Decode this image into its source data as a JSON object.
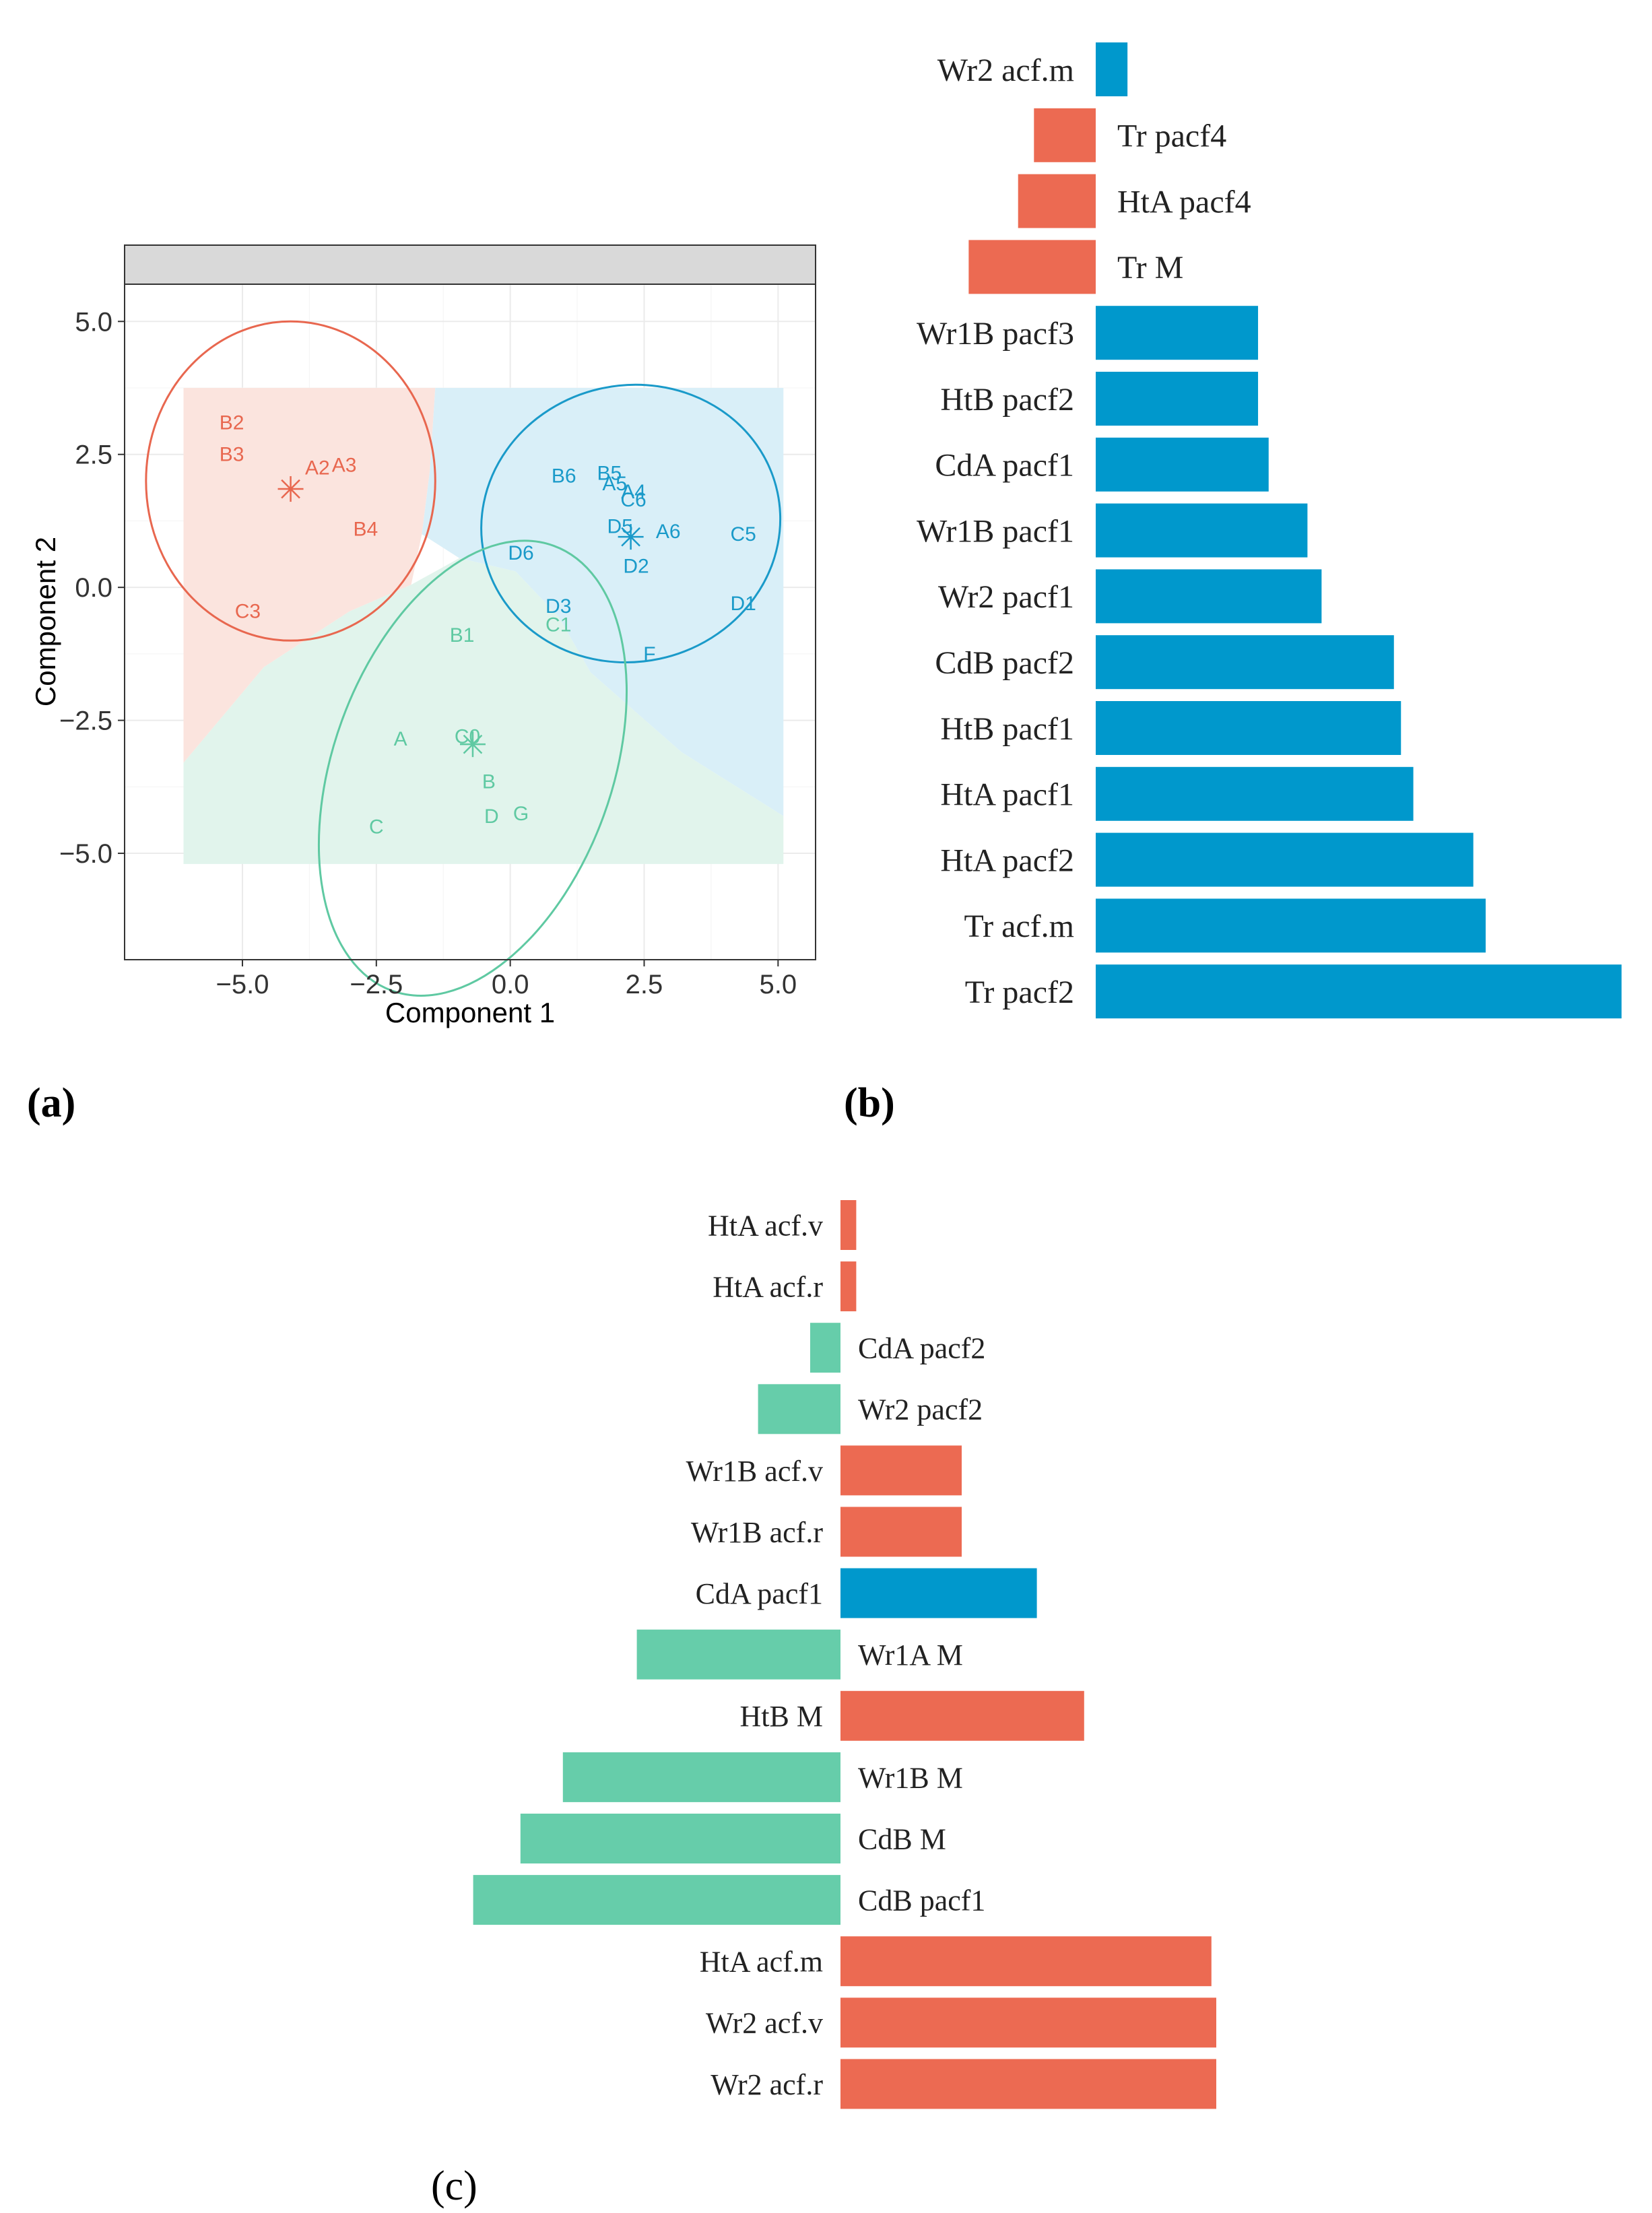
{
  "colors": {
    "red": "#e8674f",
    "blue": "#1a9ac9",
    "green": "#5fc9a2",
    "red_fill": "#fbe4de",
    "blue_fill": "#d9eff8",
    "green_fill": "#e1f4ec",
    "bar_red": "#ec6a52",
    "bar_blue": "#0098cc",
    "bar_green": "#66cdaa",
    "panel_border": "#333333",
    "strip_fill": "#d9d9d9",
    "grid": "#ebebeb"
  },
  "panel_labels": {
    "a": "(a)",
    "b": "(b)",
    "c": "(c)"
  },
  "chart_data": [
    {
      "id": "a",
      "type": "scatter",
      "title": "",
      "xlabel": "Component 1",
      "ylabel": "Component 2",
      "xlim": [
        -7.2,
        5.7
      ],
      "ylim": [
        -7.0,
        5.7
      ],
      "xticks": [
        -5.0,
        -2.5,
        0.0,
        2.5,
        5.0
      ],
      "xtick_labels": [
        "−5.0",
        "−2.5",
        "0.0",
        "2.5",
        "5.0"
      ],
      "yticks": [
        5.0,
        2.5,
        0.0,
        -2.5,
        -5.0
      ],
      "ytick_labels": [
        "5.0",
        "2.5",
        "0.0",
        "−2.5",
        "−5.0"
      ],
      "grid": true,
      "clusters": [
        {
          "name": "cluster-red",
          "color": "red",
          "centroid": [
            -4.1,
            1.85
          ],
          "points": [
            {
              "label": "B2",
              "x": -5.2,
              "y": 3.1
            },
            {
              "label": "B3",
              "x": -5.2,
              "y": 2.5
            },
            {
              "label": "A2",
              "x": -3.6,
              "y": 2.25
            },
            {
              "label": "A3",
              "x": -3.1,
              "y": 2.3
            },
            {
              "label": "B4",
              "x": -2.7,
              "y": 1.1
            },
            {
              "label": "C3",
              "x": -4.9,
              "y": -0.45
            }
          ]
        },
        {
          "name": "cluster-blue",
          "color": "blue",
          "centroid": [
            2.25,
            0.95
          ],
          "points": [
            {
              "label": "B6",
              "x": 1.0,
              "y": 2.1
            },
            {
              "label": "B5",
              "x": 1.85,
              "y": 2.15
            },
            {
              "label": "A5",
              "x": 1.95,
              "y": 1.95
            },
            {
              "label": "A4",
              "x": 2.3,
              "y": 1.8
            },
            {
              "label": "C6",
              "x": 2.3,
              "y": 1.65
            },
            {
              "label": "D5",
              "x": 2.05,
              "y": 1.15
            },
            {
              "label": "A6",
              "x": 2.95,
              "y": 1.05
            },
            {
              "label": "C5",
              "x": 4.35,
              "y": 1.0
            },
            {
              "label": "D6",
              "x": 0.2,
              "y": 0.65
            },
            {
              "label": "D2",
              "x": 2.35,
              "y": 0.4
            },
            {
              "label": "D3",
              "x": 0.9,
              "y": -0.35
            },
            {
              "label": "D1",
              "x": 4.35,
              "y": -0.3
            },
            {
              "label": "F",
              "x": 2.6,
              "y": -1.25
            }
          ]
        },
        {
          "name": "cluster-green",
          "color": "green",
          "centroid": [
            -0.7,
            -2.95
          ],
          "points": [
            {
              "label": "C1",
              "x": 0.9,
              "y": -0.7
            },
            {
              "label": "B1",
              "x": -0.9,
              "y": -0.9
            },
            {
              "label": "A",
              "x": -2.05,
              "y": -2.85
            },
            {
              "label": "C0",
              "x": -0.8,
              "y": -2.8
            },
            {
              "label": "B",
              "x": -0.4,
              "y": -3.65
            },
            {
              "label": "D",
              "x": -0.35,
              "y": -4.3
            },
            {
              "label": "G",
              "x": 0.2,
              "y": -4.25
            },
            {
              "label": "C",
              "x": -2.5,
              "y": -4.5
            }
          ]
        }
      ]
    },
    {
      "id": "b",
      "type": "bar",
      "orientation": "horizontal",
      "title": "",
      "xlim": [
        -0.7,
        3.0
      ],
      "categories": [
        "Wr2 acf.m",
        "Tr pacf4",
        "HtA pacf4",
        "Tr M",
        "Wr1B pacf3",
        "HtB pacf2",
        "CdA pacf1",
        "Wr1B pacf1",
        "Wr2 pacf1",
        "CdB pacf2",
        "HtB pacf1",
        "HtA pacf1",
        "HtA pacf2",
        "Tr acf.m",
        "Tr pacf2"
      ],
      "values": [
        0.18,
        -0.35,
        -0.44,
        -0.72,
        0.92,
        0.92,
        0.98,
        1.2,
        1.28,
        1.69,
        1.73,
        1.8,
        2.14,
        2.21,
        2.98
      ],
      "colors": [
        "blue",
        "red",
        "red",
        "red",
        "blue",
        "blue",
        "blue",
        "blue",
        "blue",
        "blue",
        "blue",
        "blue",
        "blue",
        "blue",
        "blue"
      ]
    },
    {
      "id": "c",
      "type": "bar",
      "orientation": "horizontal",
      "title": "",
      "xlim": [
        -3.4,
        3.4
      ],
      "categories": [
        "HtA acf.v",
        "HtA acf.r",
        "CdA pacf2",
        "Wr2 pacf2",
        "Wr1B acf.v",
        "Wr1B acf.r",
        "CdA pacf1",
        "Wr1A M",
        "HtB M",
        "Wr1B M",
        "CdB M",
        "CdB pacf1",
        "HtA acf.m",
        "Wr2 acf.v",
        "Wr2 acf.r"
      ],
      "values": [
        0.13,
        0.13,
        -0.25,
        -0.68,
        1.0,
        1.0,
        1.62,
        -1.68,
        2.01,
        -2.29,
        -2.64,
        -3.03,
        3.06,
        3.1,
        3.1
      ],
      "colors": [
        "red",
        "red",
        "green",
        "green",
        "red",
        "red",
        "blue",
        "green",
        "red",
        "green",
        "green",
        "green",
        "red",
        "red",
        "red"
      ]
    }
  ]
}
